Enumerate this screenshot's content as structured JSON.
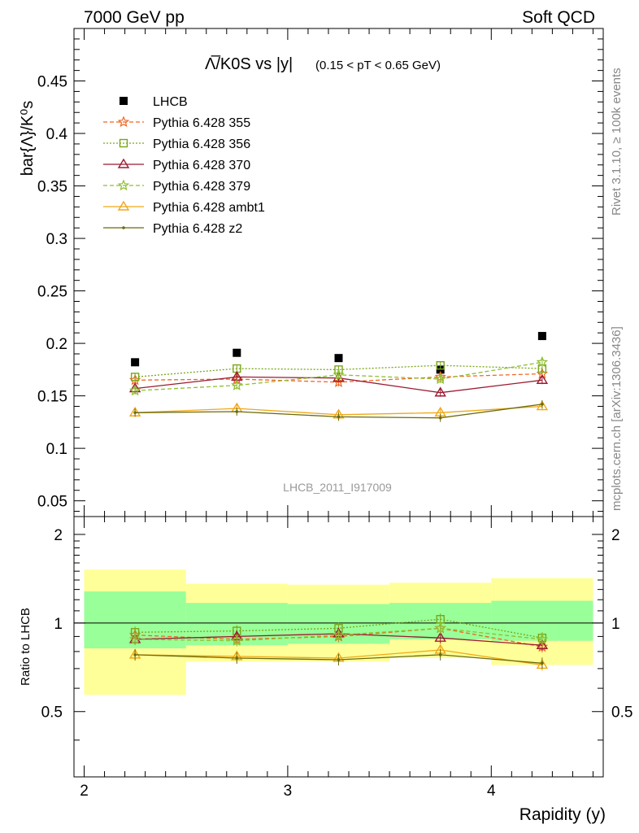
{
  "header": {
    "left": "7000 GeV pp",
    "right": "Soft QCD"
  },
  "side_text": {
    "rivet": "Rivet 3.1.10, ≥ 100k events",
    "mcplots": "mcplots.cern.ch [arXiv:1306.3436]"
  },
  "watermark": "LHCB_2011_I917009",
  "chart_data": [
    {
      "type": "scatter",
      "title": "Λ̅/K0S vs |y|",
      "subtitle": "(0.15 < pT < 0.65 GeV)",
      "ylabel": "bar{Λ}/K⁰s",
      "xlim": [
        1.95,
        4.55
      ],
      "ylim": [
        0.035,
        0.5
      ],
      "yticks": [
        "0.05",
        "0.1",
        "0.15",
        "0.2",
        "0.25",
        "0.3",
        "0.35",
        "0.4",
        "0.45"
      ],
      "ytick_values": [
        0.05,
        0.1,
        0.15,
        0.2,
        0.25,
        0.3,
        0.35,
        0.4,
        0.45
      ],
      "legend_placement": "top-left",
      "x": [
        2.25,
        2.75,
        3.25,
        3.75,
        4.25
      ],
      "series": [
        {
          "name": "LHCB",
          "color": "#000000",
          "marker": "square",
          "line": "none",
          "values": [
            0.182,
            0.191,
            0.186,
            0.175,
            0.207
          ]
        },
        {
          "name": "Pythia 6.428 355",
          "color": "#f26522",
          "marker": "star",
          "line": "dashed",
          "values": [
            0.165,
            0.166,
            0.163,
            0.168,
            0.171
          ]
        },
        {
          "name": "Pythia 6.428 356",
          "color": "#7aa61a",
          "marker": "open-square",
          "line": "dotted",
          "values": [
            0.168,
            0.176,
            0.175,
            0.179,
            0.176
          ]
        },
        {
          "name": "Pythia 6.428 370",
          "color": "#9b1b30",
          "marker": "open-triangle",
          "line": "solid",
          "values": [
            0.157,
            0.168,
            0.167,
            0.153,
            0.165
          ]
        },
        {
          "name": "Pythia 6.428 379",
          "color": "#8dbf2e",
          "marker": "star",
          "line": "dashed",
          "values": [
            0.155,
            0.16,
            0.17,
            0.166,
            0.182
          ]
        },
        {
          "name": "Pythia 6.428 ambt1",
          "color": "#f0a818",
          "marker": "open-triangle",
          "line": "solid",
          "values": [
            0.134,
            0.138,
            0.132,
            0.134,
            0.14
          ]
        },
        {
          "name": "Pythia 6.428 z2",
          "color": "#6b6b0e",
          "marker": "dot",
          "line": "solid",
          "values": [
            0.134,
            0.135,
            0.13,
            0.129,
            0.142
          ]
        }
      ]
    },
    {
      "type": "scatter",
      "ylabel": "Ratio to LHCB",
      "xlabel": "Rapidity (y)",
      "xlim": [
        1.95,
        4.55
      ],
      "ylim": [
        0.3,
        2.3
      ],
      "xticks": [
        "2",
        "3",
        "4"
      ],
      "xtick_values": [
        2,
        3,
        4
      ],
      "yticks": [
        "0.5",
        "1",
        "2"
      ],
      "ytick_values": [
        0.5,
        1,
        2
      ],
      "bands": [
        {
          "x_range": [
            2.0,
            2.5
          ],
          "green": [
            0.82,
            1.28
          ],
          "yellow": [
            0.57,
            1.52
          ]
        },
        {
          "x_range": [
            2.5,
            3.0
          ],
          "green": [
            0.84,
            1.17
          ],
          "yellow": [
            0.74,
            1.36
          ]
        },
        {
          "x_range": [
            3.0,
            3.5
          ],
          "green": [
            0.85,
            1.16
          ],
          "yellow": [
            0.74,
            1.35
          ]
        },
        {
          "x_range": [
            3.5,
            4.0
          ],
          "green": [
            0.88,
            1.17
          ],
          "yellow": [
            0.76,
            1.37
          ]
        },
        {
          "x_range": [
            4.0,
            4.5
          ],
          "green": [
            0.87,
            1.19
          ],
          "yellow": [
            0.72,
            1.42
          ]
        }
      ],
      "x": [
        2.25,
        2.75,
        3.25,
        3.75,
        4.25
      ],
      "series": [
        {
          "name": "Pythia 6.428 355",
          "color": "#f26522",
          "marker": "star",
          "line": "dashed",
          "values": [
            0.91,
            0.88,
            0.9,
            0.96,
            0.83
          ]
        },
        {
          "name": "Pythia 6.428 356",
          "color": "#7aa61a",
          "marker": "open-square",
          "line": "dotted",
          "values": [
            0.93,
            0.94,
            0.96,
            1.03,
            0.89
          ]
        },
        {
          "name": "Pythia 6.428 370",
          "color": "#9b1b30",
          "marker": "open-triangle",
          "line": "solid",
          "values": [
            0.88,
            0.9,
            0.92,
            0.89,
            0.84
          ]
        },
        {
          "name": "Pythia 6.428 379",
          "color": "#8dbf2e",
          "marker": "star",
          "line": "dashed",
          "values": [
            0.88,
            0.87,
            0.91,
            0.96,
            0.88
          ]
        },
        {
          "name": "Pythia 6.428 ambt1",
          "color": "#f0a818",
          "marker": "open-triangle",
          "line": "solid",
          "values": [
            0.78,
            0.77,
            0.76,
            0.81,
            0.72
          ]
        },
        {
          "name": "Pythia 6.428 z2",
          "color": "#6b6b0e",
          "marker": "dot",
          "line": "solid",
          "values": [
            0.78,
            0.76,
            0.75,
            0.78,
            0.73
          ]
        }
      ]
    }
  ]
}
